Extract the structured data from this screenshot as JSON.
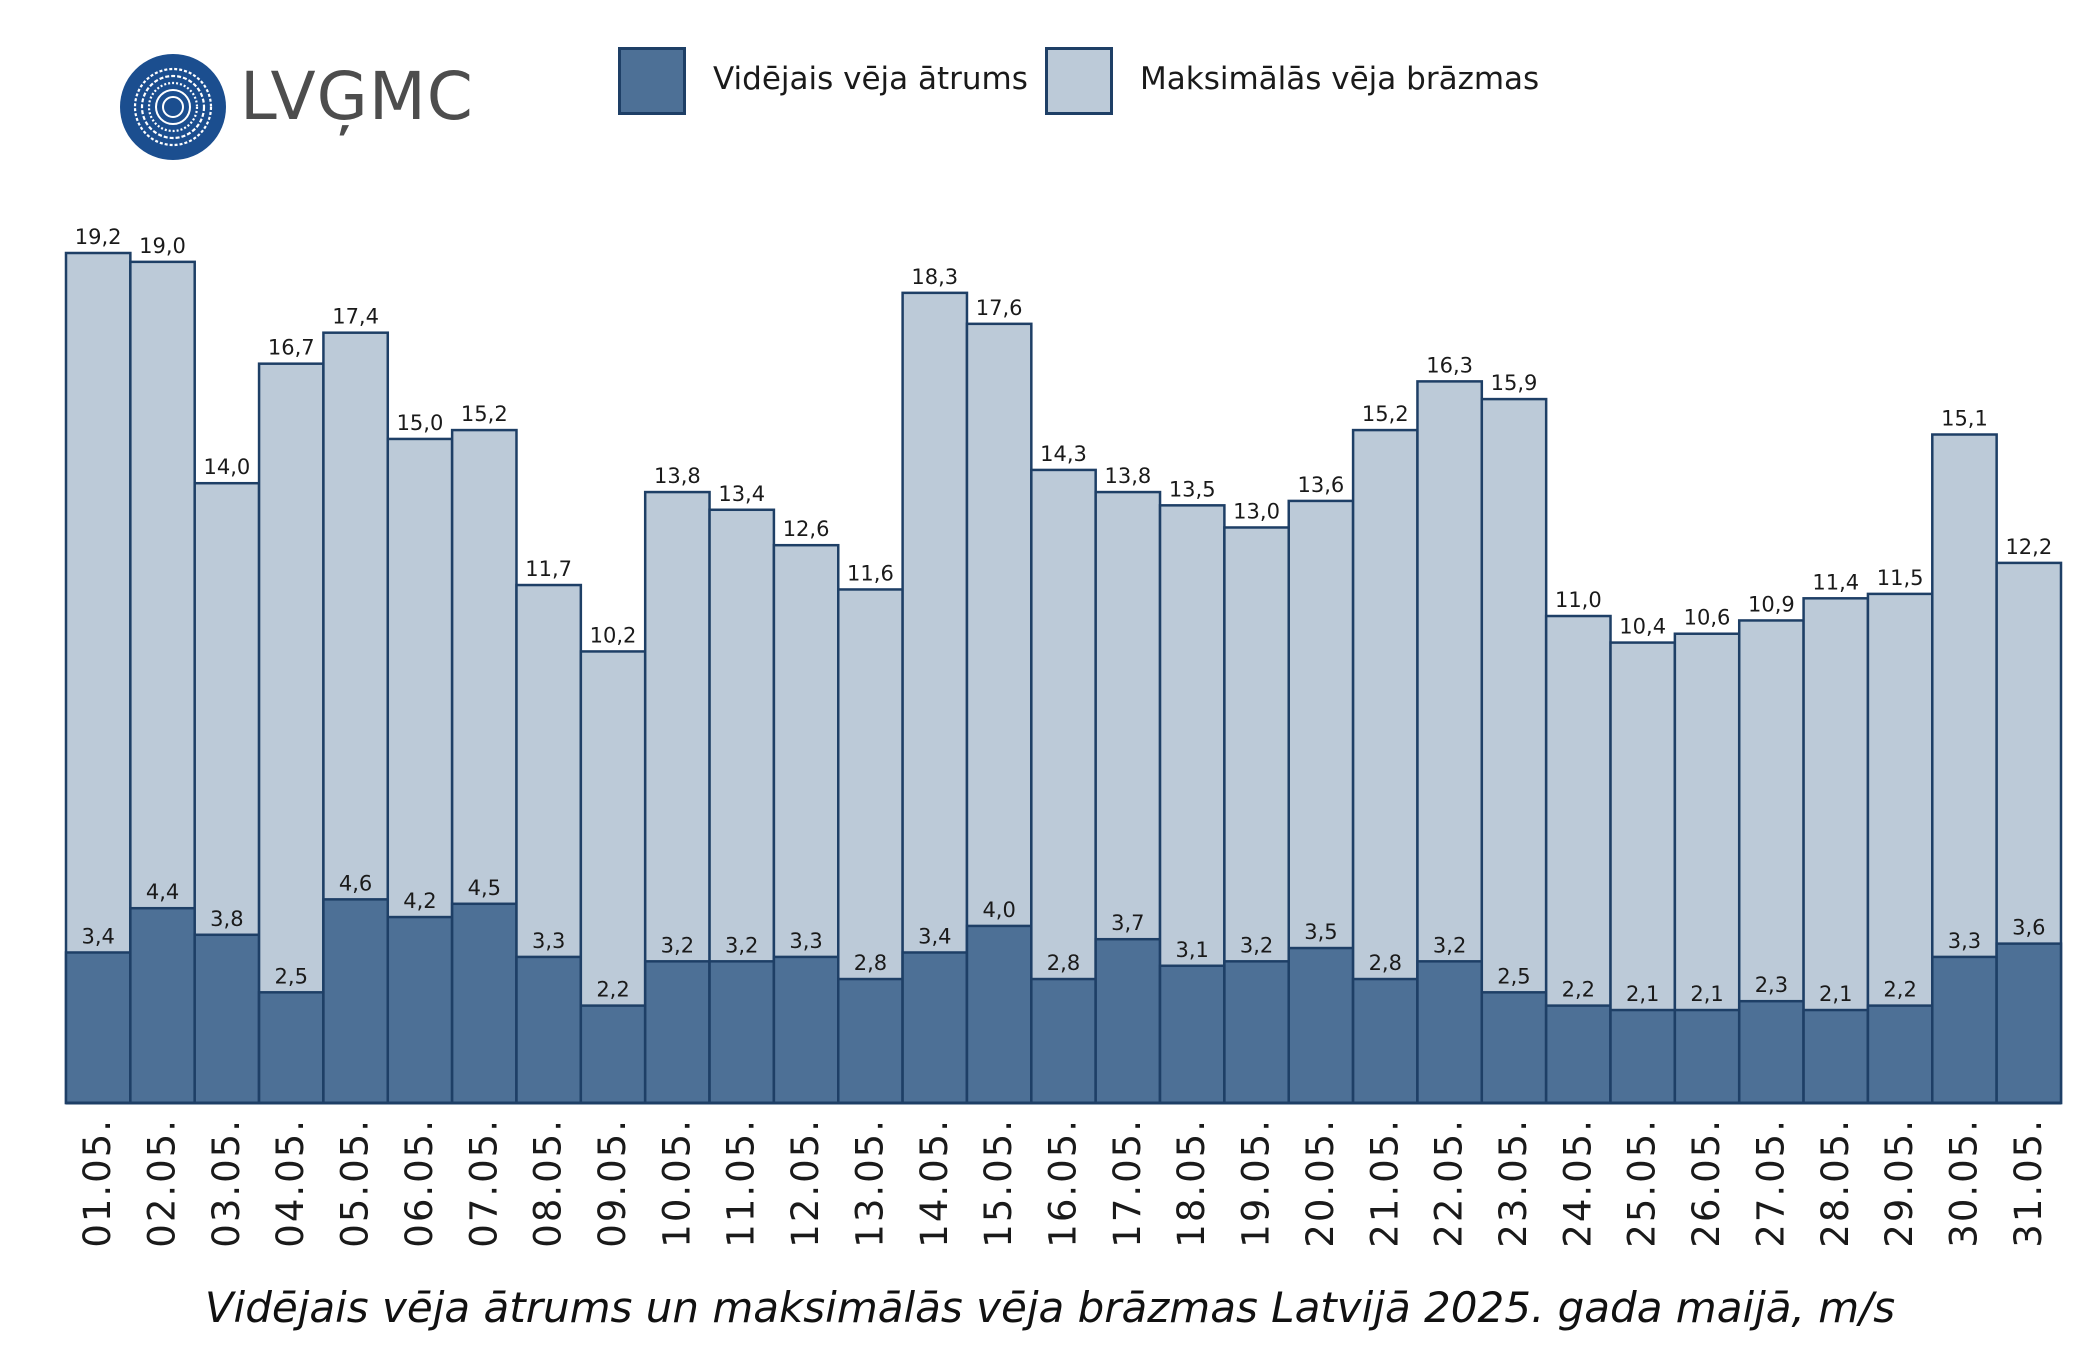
{
  "logo": {
    "text": "LVĢMC",
    "color": "#1b4e8f"
  },
  "legend": [
    {
      "label": "Vidējais vēja ātrums",
      "color": "#4d7096"
    },
    {
      "label": "Maksimālās vēja brāzmas",
      "color": "#bccad8"
    }
  ],
  "caption": "Vidējais vēja ātrums un maksimālās vēja brāzmas Latvijā 2025. gada maijā, m/s",
  "chart_data": {
    "type": "bar",
    "categories": [
      "01.05.",
      "02.05.",
      "03.05.",
      "04.05.",
      "05.05.",
      "06.05.",
      "07.05.",
      "08.05.",
      "09.05.",
      "10.05.",
      "11.05.",
      "12.05.",
      "13.05.",
      "14.05.",
      "15.05.",
      "16.05.",
      "17.05.",
      "18.05.",
      "19.05.",
      "20.05.",
      "21.05.",
      "22.05.",
      "23.05.",
      "24.05.",
      "25.05.",
      "26.05.",
      "27.05.",
      "28.05.",
      "29.05.",
      "30.05.",
      "31.05."
    ],
    "series": [
      {
        "name": "Vidējais vēja ātrums",
        "color": "#4d7096",
        "values": [
          3.4,
          4.4,
          3.8,
          2.5,
          4.6,
          4.2,
          4.5,
          3.3,
          2.2,
          3.2,
          3.2,
          3.3,
          2.8,
          3.4,
          4.0,
          2.8,
          3.7,
          3.1,
          3.2,
          3.5,
          2.8,
          3.2,
          2.5,
          2.2,
          2.1,
          2.1,
          2.3,
          2.1,
          2.2,
          3.3,
          3.6
        ],
        "labels": [
          "3,4",
          "4,4",
          "3,8",
          "2,5",
          "4,6",
          "4,2",
          "4,5",
          "3,3",
          "2,2",
          "3,2",
          "3,2",
          "3,3",
          "2,8",
          "3,4",
          "4,0",
          "2,8",
          "3,7",
          "3,1",
          "3,2",
          "3,5",
          "2,8",
          "3,2",
          "2,5",
          "2,2",
          "2,1",
          "2,1",
          "2,3",
          "2,1",
          "2,2",
          "3,3",
          "3,6"
        ]
      },
      {
        "name": "Maksimālās vēja brāzmas",
        "color": "#bccad8",
        "values": [
          19.2,
          19.0,
          14.0,
          16.7,
          17.4,
          15.0,
          15.2,
          11.7,
          10.2,
          13.8,
          13.4,
          12.6,
          11.6,
          18.3,
          17.6,
          14.3,
          13.8,
          13.5,
          13.0,
          13.6,
          15.2,
          16.3,
          15.9,
          11.0,
          10.4,
          10.6,
          10.9,
          11.4,
          11.5,
          15.1,
          12.2
        ],
        "labels": [
          "19,2",
          "19,0",
          "14,0",
          "16,7",
          "17,4",
          "15,0",
          "15,2",
          "11,7",
          "10,2",
          "13,8",
          "13,4",
          "12,6",
          "11,6",
          "18,3",
          "17,6",
          "14,3",
          "13,8",
          "13,5",
          "13,0",
          "13,6",
          "15,2",
          "16,3",
          "15,9",
          "11,0",
          "10,4",
          "10,6",
          "10,9",
          "11,4",
          "11,5",
          "15,1",
          "12,2"
        ]
      }
    ],
    "ylim": [
      0,
      19.2
    ],
    "grid": false,
    "legend_position": "top"
  }
}
